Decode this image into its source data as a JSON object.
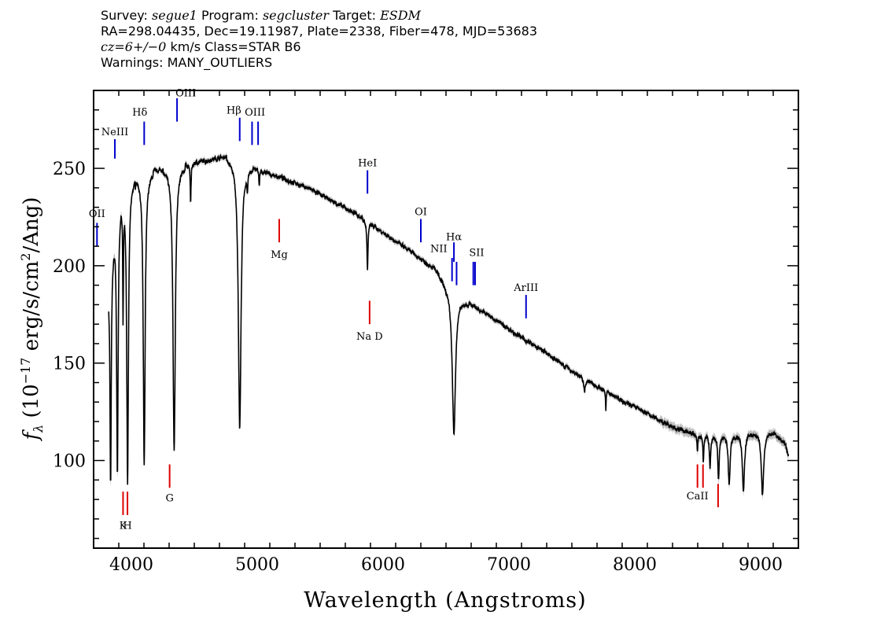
{
  "header": {
    "line1": {
      "survey_label": "Survey:",
      "survey": "segue1",
      "program_label": "Program:",
      "program": "segcluster",
      "target_label": "Target:",
      "target": "ESDM"
    },
    "line2": "RA=298.04435, Dec=19.11987, Plate=2338, Fiber=478, MJD=53683",
    "line3": {
      "cz": "cz=6+/−0",
      "rest": " km/s Class=STAR B6"
    },
    "line4": "Warnings: MANY_OUTLIERS"
  },
  "chart_data": {
    "type": "line",
    "title": "",
    "xlabel": "Wavelength (Angstroms)",
    "ylabel": "fλ (10⁻¹⁷ erg/s/cm²/Ang)",
    "xlim": [
      3700,
      9300
    ],
    "ylim": [
      55,
      290
    ],
    "x_ticks": [
      4000,
      5000,
      6000,
      7000,
      8000,
      9000
    ],
    "y_ticks": [
      100,
      150,
      200,
      250
    ],
    "grid": false,
    "legend": "none",
    "colors": {
      "flux": "#000000",
      "error_band": "#bbbbbb",
      "emission": "#0000cc",
      "absorption": "#dd0000"
    },
    "continuum": [
      [
        3820,
        192
      ],
      [
        3870,
        222
      ],
      [
        3920,
        238
      ],
      [
        3970,
        242
      ],
      [
        4050,
        246
      ],
      [
        4150,
        248
      ],
      [
        4300,
        250
      ],
      [
        4450,
        252
      ],
      [
        4600,
        254
      ],
      [
        4750,
        256
      ],
      [
        4850,
        254
      ],
      [
        4950,
        251
      ],
      [
        5050,
        248
      ],
      [
        5200,
        245
      ],
      [
        5400,
        240
      ],
      [
        5600,
        233
      ],
      [
        5800,
        226
      ],
      [
        6000,
        217
      ],
      [
        6200,
        208
      ],
      [
        6400,
        199
      ],
      [
        6550,
        186
      ],
      [
        6700,
        180
      ],
      [
        6900,
        172
      ],
      [
        7100,
        163
      ],
      [
        7300,
        155
      ],
      [
        7500,
        146
      ],
      [
        7700,
        138
      ],
      [
        7900,
        131
      ],
      [
        8100,
        124
      ],
      [
        8300,
        117
      ],
      [
        8500,
        113
      ],
      [
        8700,
        113
      ],
      [
        8900,
        114
      ],
      [
        9100,
        114
      ],
      [
        9200,
        108
      ],
      [
        9220,
        102
      ]
    ],
    "absorption_features": [
      {
        "center": 3835,
        "depth": 112,
        "width": 6
      },
      {
        "center": 3889,
        "depth": 137,
        "width": 7
      },
      {
        "center": 3934,
        "depth": 60,
        "width": 3
      },
      {
        "center": 3970,
        "depth": 155,
        "width": 8
      },
      {
        "center": 4102,
        "depth": 150,
        "width": 9
      },
      {
        "center": 4340,
        "depth": 145,
        "width": 11
      },
      {
        "center": 4471,
        "depth": 20,
        "width": 4
      },
      {
        "center": 4861,
        "depth": 137,
        "width": 13
      },
      {
        "center": 4922,
        "depth": 10,
        "width": 4
      },
      {
        "center": 5016,
        "depth": 8,
        "width": 4
      },
      {
        "center": 5876,
        "depth": 24,
        "width": 5
      },
      {
        "center": 6563,
        "depth": 72,
        "width": 15
      },
      {
        "center": 7600,
        "depth": 6,
        "width": 8
      },
      {
        "center": 7770,
        "depth": 10,
        "width": 3
      },
      {
        "center": 8498,
        "depth": 8,
        "width": 4
      },
      {
        "center": 8545,
        "depth": 13,
        "width": 5
      },
      {
        "center": 8598,
        "depth": 17,
        "width": 6
      },
      {
        "center": 8665,
        "depth": 22,
        "width": 7
      },
      {
        "center": 8750,
        "depth": 26,
        "width": 9
      },
      {
        "center": 8863,
        "depth": 30,
        "width": 10
      },
      {
        "center": 9015,
        "depth": 32,
        "width": 11
      }
    ],
    "emission_lines": [
      {
        "label": "OII",
        "x": 3727,
        "bottom": 210,
        "top": 222,
        "label_y": 225,
        "anchor": "middle",
        "dx": 0
      },
      {
        "label": "NeIII",
        "x": 3869,
        "bottom": 255,
        "top": 265,
        "label_y": 267,
        "anchor": "middle",
        "dx": 0
      },
      {
        "label": "Hδ",
        "x": 4102,
        "bottom": 262,
        "top": 274,
        "label_y": 277,
        "anchor": "end",
        "dx": 4
      },
      {
        "label": "OIII",
        "x": 4363,
        "bottom": 274,
        "top": 286,
        "label_y": 287,
        "anchor": "start",
        "dx": -2
      },
      {
        "label": "Hβ",
        "x": 4861,
        "bottom": 264,
        "top": 276,
        "label_y": 278,
        "anchor": "end",
        "dx": 2
      },
      {
        "label": "OIII",
        "x": 5007,
        "bottom": 262,
        "top": 274,
        "label_y": 277,
        "anchor": "middle",
        "dx": -4
      },
      {
        "label": "",
        "x": 4959,
        "bottom": 262,
        "top": 274,
        "label_y": 0,
        "anchor": "middle",
        "dx": 0
      },
      {
        "label": "HeI",
        "x": 5876,
        "bottom": 237,
        "top": 249,
        "label_y": 251,
        "anchor": "middle",
        "dx": 0
      },
      {
        "label": "OI",
        "x": 6300,
        "bottom": 212,
        "top": 224,
        "label_y": 226,
        "anchor": "middle",
        "dx": 0
      },
      {
        "label": "Hα",
        "x": 6563,
        "bottom": 202,
        "top": 212,
        "label_y": 213,
        "anchor": "middle",
        "dx": 0
      },
      {
        "label": "NII",
        "x": 6548,
        "bottom": 192,
        "top": 204,
        "label_y": 207,
        "anchor": "end",
        "dx": -6
      },
      {
        "label": "",
        "x": 6584,
        "bottom": 190,
        "top": 202,
        "label_y": 0,
        "anchor": "middle",
        "dx": 0
      },
      {
        "label": "SII",
        "x": 6731,
        "bottom": 190,
        "top": 202,
        "label_y": 205,
        "anchor": "middle",
        "dx": 2
      },
      {
        "label": "",
        "x": 6717,
        "bottom": 190,
        "top": 202,
        "label_y": 0,
        "anchor": "middle",
        "dx": 0
      },
      {
        "label": "ArIII",
        "x": 7136,
        "bottom": 173,
        "top": 185,
        "label_y": 187,
        "anchor": "middle",
        "dx": 0
      }
    ],
    "absorption_lines": [
      {
        "label": "K",
        "x": 3934,
        "bottom": 72,
        "top": 84,
        "label_y": 69
      },
      {
        "label": "H",
        "x": 3969,
        "bottom": 72,
        "top": 84,
        "label_y": 69
      },
      {
        "label": "G",
        "x": 4304,
        "bottom": 86,
        "top": 98,
        "label_y": 83
      },
      {
        "label": "Mg",
        "x": 5175,
        "bottom": 212,
        "top": 224,
        "label_y": 208
      },
      {
        "label": "Na D",
        "x": 5893,
        "bottom": 170,
        "top": 182,
        "label_y": 166
      },
      {
        "label": "CaII",
        "x": 8498,
        "bottom": 86,
        "top": 98,
        "label_y": 84
      },
      {
        "label": "",
        "x": 8542,
        "bottom": 86,
        "top": 98,
        "label_y": 0
      },
      {
        "label": "",
        "x": 8662,
        "bottom": 76,
        "top": 88,
        "label_y": 0
      }
    ]
  }
}
